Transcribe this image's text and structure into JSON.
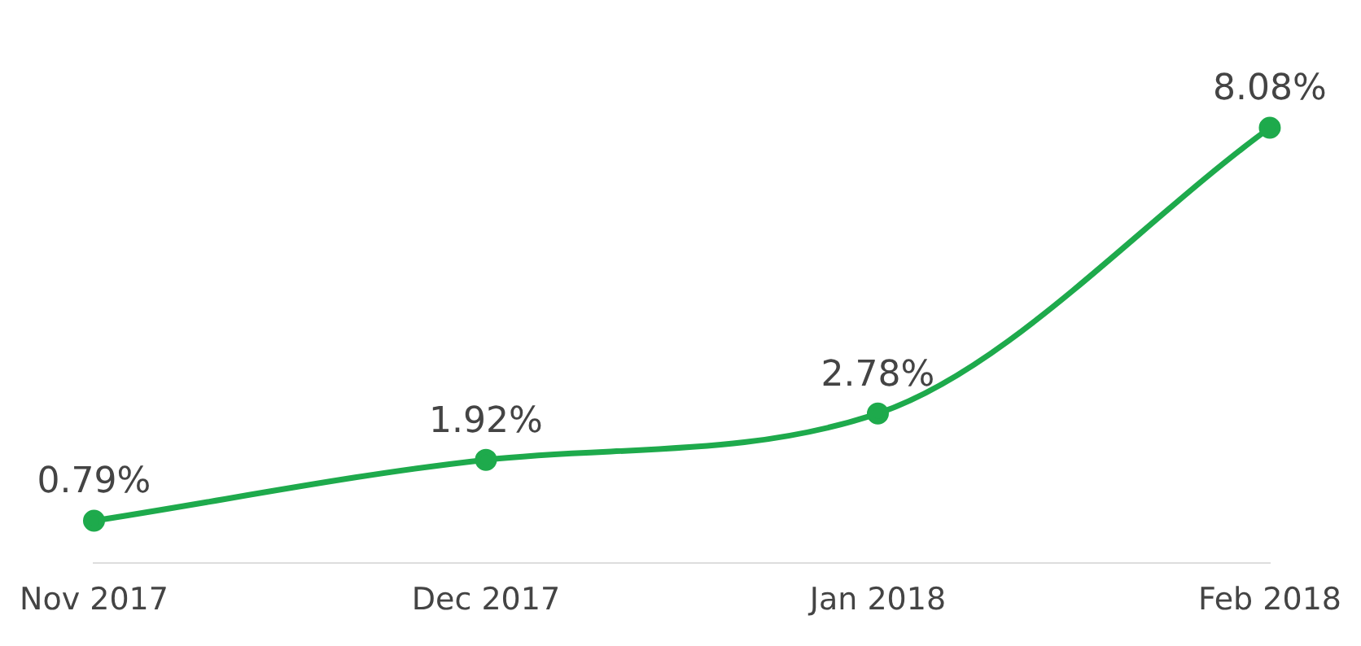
{
  "chart_data": {
    "type": "line",
    "categories": [
      "Nov 2017",
      "Dec 2017",
      "Jan 2018",
      "Feb 2018"
    ],
    "series": [
      {
        "color": "#1eaa4c",
        "values": [
          0.79,
          1.92,
          2.78,
          8.08
        ],
        "value_labels": [
          "0.79%",
          "1.92%",
          "2.78%",
          "8.08%"
        ]
      }
    ],
    "tick_labels": "x",
    "grid": false,
    "legend": false,
    "marker": "circle",
    "line_style": "solid"
  }
}
